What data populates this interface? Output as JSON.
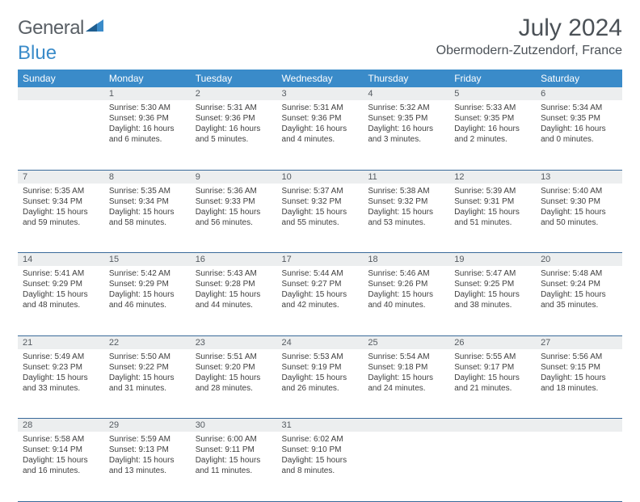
{
  "logo": {
    "text1": "General",
    "text2": "Blue"
  },
  "title": "July 2024",
  "location": "Obermodern-Zutzendorf, France",
  "colors": {
    "header_bg": "#3a8bc9",
    "header_text": "#ffffff",
    "daynum_bg": "#eceeef",
    "border": "#3a6a9a",
    "text": "#404040"
  },
  "fonts": {
    "title_pt": 30,
    "location_pt": 16,
    "header_pt": 12,
    "daynum_pt": 11,
    "body_pt": 10
  },
  "weekdays": [
    "Sunday",
    "Monday",
    "Tuesday",
    "Wednesday",
    "Thursday",
    "Friday",
    "Saturday"
  ],
  "weeks": [
    [
      null,
      {
        "n": "1",
        "sr": "Sunrise: 5:30 AM",
        "ss": "Sunset: 9:36 PM",
        "d1": "Daylight: 16 hours",
        "d2": "and 6 minutes."
      },
      {
        "n": "2",
        "sr": "Sunrise: 5:31 AM",
        "ss": "Sunset: 9:36 PM",
        "d1": "Daylight: 16 hours",
        "d2": "and 5 minutes."
      },
      {
        "n": "3",
        "sr": "Sunrise: 5:31 AM",
        "ss": "Sunset: 9:36 PM",
        "d1": "Daylight: 16 hours",
        "d2": "and 4 minutes."
      },
      {
        "n": "4",
        "sr": "Sunrise: 5:32 AM",
        "ss": "Sunset: 9:35 PM",
        "d1": "Daylight: 16 hours",
        "d2": "and 3 minutes."
      },
      {
        "n": "5",
        "sr": "Sunrise: 5:33 AM",
        "ss": "Sunset: 9:35 PM",
        "d1": "Daylight: 16 hours",
        "d2": "and 2 minutes."
      },
      {
        "n": "6",
        "sr": "Sunrise: 5:34 AM",
        "ss": "Sunset: 9:35 PM",
        "d1": "Daylight: 16 hours",
        "d2": "and 0 minutes."
      }
    ],
    [
      {
        "n": "7",
        "sr": "Sunrise: 5:35 AM",
        "ss": "Sunset: 9:34 PM",
        "d1": "Daylight: 15 hours",
        "d2": "and 59 minutes."
      },
      {
        "n": "8",
        "sr": "Sunrise: 5:35 AM",
        "ss": "Sunset: 9:34 PM",
        "d1": "Daylight: 15 hours",
        "d2": "and 58 minutes."
      },
      {
        "n": "9",
        "sr": "Sunrise: 5:36 AM",
        "ss": "Sunset: 9:33 PM",
        "d1": "Daylight: 15 hours",
        "d2": "and 56 minutes."
      },
      {
        "n": "10",
        "sr": "Sunrise: 5:37 AM",
        "ss": "Sunset: 9:32 PM",
        "d1": "Daylight: 15 hours",
        "d2": "and 55 minutes."
      },
      {
        "n": "11",
        "sr": "Sunrise: 5:38 AM",
        "ss": "Sunset: 9:32 PM",
        "d1": "Daylight: 15 hours",
        "d2": "and 53 minutes."
      },
      {
        "n": "12",
        "sr": "Sunrise: 5:39 AM",
        "ss": "Sunset: 9:31 PM",
        "d1": "Daylight: 15 hours",
        "d2": "and 51 minutes."
      },
      {
        "n": "13",
        "sr": "Sunrise: 5:40 AM",
        "ss": "Sunset: 9:30 PM",
        "d1": "Daylight: 15 hours",
        "d2": "and 50 minutes."
      }
    ],
    [
      {
        "n": "14",
        "sr": "Sunrise: 5:41 AM",
        "ss": "Sunset: 9:29 PM",
        "d1": "Daylight: 15 hours",
        "d2": "and 48 minutes."
      },
      {
        "n": "15",
        "sr": "Sunrise: 5:42 AM",
        "ss": "Sunset: 9:29 PM",
        "d1": "Daylight: 15 hours",
        "d2": "and 46 minutes."
      },
      {
        "n": "16",
        "sr": "Sunrise: 5:43 AM",
        "ss": "Sunset: 9:28 PM",
        "d1": "Daylight: 15 hours",
        "d2": "and 44 minutes."
      },
      {
        "n": "17",
        "sr": "Sunrise: 5:44 AM",
        "ss": "Sunset: 9:27 PM",
        "d1": "Daylight: 15 hours",
        "d2": "and 42 minutes."
      },
      {
        "n": "18",
        "sr": "Sunrise: 5:46 AM",
        "ss": "Sunset: 9:26 PM",
        "d1": "Daylight: 15 hours",
        "d2": "and 40 minutes."
      },
      {
        "n": "19",
        "sr": "Sunrise: 5:47 AM",
        "ss": "Sunset: 9:25 PM",
        "d1": "Daylight: 15 hours",
        "d2": "and 38 minutes."
      },
      {
        "n": "20",
        "sr": "Sunrise: 5:48 AM",
        "ss": "Sunset: 9:24 PM",
        "d1": "Daylight: 15 hours",
        "d2": "and 35 minutes."
      }
    ],
    [
      {
        "n": "21",
        "sr": "Sunrise: 5:49 AM",
        "ss": "Sunset: 9:23 PM",
        "d1": "Daylight: 15 hours",
        "d2": "and 33 minutes."
      },
      {
        "n": "22",
        "sr": "Sunrise: 5:50 AM",
        "ss": "Sunset: 9:22 PM",
        "d1": "Daylight: 15 hours",
        "d2": "and 31 minutes."
      },
      {
        "n": "23",
        "sr": "Sunrise: 5:51 AM",
        "ss": "Sunset: 9:20 PM",
        "d1": "Daylight: 15 hours",
        "d2": "and 28 minutes."
      },
      {
        "n": "24",
        "sr": "Sunrise: 5:53 AM",
        "ss": "Sunset: 9:19 PM",
        "d1": "Daylight: 15 hours",
        "d2": "and 26 minutes."
      },
      {
        "n": "25",
        "sr": "Sunrise: 5:54 AM",
        "ss": "Sunset: 9:18 PM",
        "d1": "Daylight: 15 hours",
        "d2": "and 24 minutes."
      },
      {
        "n": "26",
        "sr": "Sunrise: 5:55 AM",
        "ss": "Sunset: 9:17 PM",
        "d1": "Daylight: 15 hours",
        "d2": "and 21 minutes."
      },
      {
        "n": "27",
        "sr": "Sunrise: 5:56 AM",
        "ss": "Sunset: 9:15 PM",
        "d1": "Daylight: 15 hours",
        "d2": "and 18 minutes."
      }
    ],
    [
      {
        "n": "28",
        "sr": "Sunrise: 5:58 AM",
        "ss": "Sunset: 9:14 PM",
        "d1": "Daylight: 15 hours",
        "d2": "and 16 minutes."
      },
      {
        "n": "29",
        "sr": "Sunrise: 5:59 AM",
        "ss": "Sunset: 9:13 PM",
        "d1": "Daylight: 15 hours",
        "d2": "and 13 minutes."
      },
      {
        "n": "30",
        "sr": "Sunrise: 6:00 AM",
        "ss": "Sunset: 9:11 PM",
        "d1": "Daylight: 15 hours",
        "d2": "and 11 minutes."
      },
      {
        "n": "31",
        "sr": "Sunrise: 6:02 AM",
        "ss": "Sunset: 9:10 PM",
        "d1": "Daylight: 15 hours",
        "d2": "and 8 minutes."
      },
      null,
      null,
      null
    ]
  ]
}
